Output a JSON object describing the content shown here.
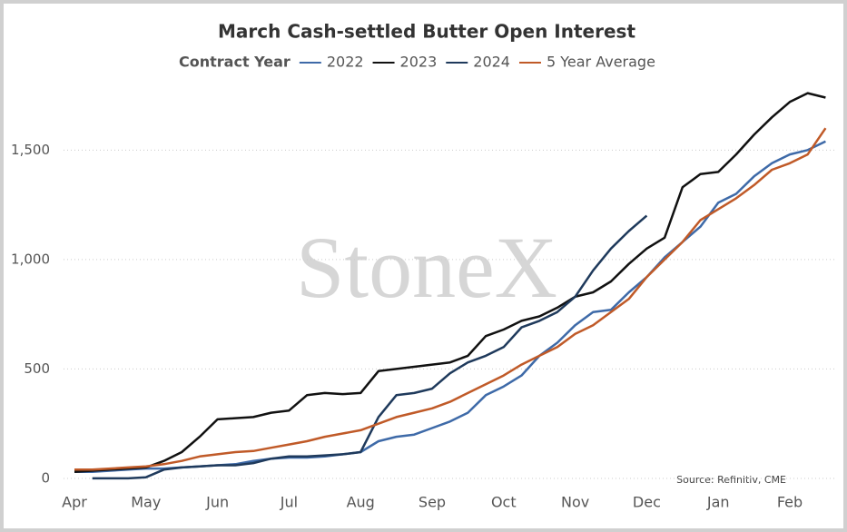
{
  "chart_data": {
    "type": "line",
    "title": "March Cash-settled Butter Open Interest",
    "legend_title": "Contract Year",
    "source": "Source: Refinitiv, CME",
    "watermark": "StoneX",
    "categories": [
      "Apr",
      null,
      null,
      null,
      "May",
      null,
      null,
      null,
      "Jun",
      null,
      null,
      null,
      "Jul",
      null,
      null,
      null,
      "Aug",
      null,
      null,
      null,
      "Sep",
      null,
      null,
      null,
      "Oct",
      null,
      null,
      null,
      "Nov",
      null,
      null,
      null,
      "Dec",
      null,
      null,
      null,
      "Jan",
      null,
      null,
      null,
      "Feb",
      null,
      null
    ],
    "series": [
      {
        "name": "2022",
        "color": "#3e6aa8",
        "values": [
          30,
          30,
          35,
          40,
          45,
          45,
          50,
          55,
          60,
          65,
          80,
          90,
          95,
          95,
          100,
          110,
          120,
          170,
          190,
          200,
          230,
          260,
          300,
          380,
          420,
          470,
          560,
          620,
          700,
          760,
          770,
          850,
          920,
          1010,
          1080,
          1150,
          1260,
          1300,
          1380,
          1440,
          1480,
          1500,
          1540
        ]
      },
      {
        "name": "2023",
        "color": "#111111",
        "values": [
          30,
          35,
          40,
          45,
          50,
          80,
          120,
          190,
          270,
          275,
          280,
          300,
          310,
          380,
          390,
          385,
          390,
          490,
          500,
          510,
          520,
          530,
          560,
          650,
          680,
          720,
          740,
          780,
          830,
          850,
          900,
          980,
          1050,
          1100,
          1330,
          1390,
          1400,
          1480,
          1570,
          1650,
          1720,
          1760,
          1740
        ]
      },
      {
        "name": "2024",
        "color": "#1f3a5c",
        "values": [
          null,
          0,
          0,
          0,
          5,
          40,
          50,
          55,
          60,
          60,
          70,
          90,
          100,
          100,
          105,
          110,
          120,
          280,
          380,
          390,
          410,
          480,
          530,
          560,
          600,
          690,
          720,
          760,
          830,
          950,
          1050,
          1130,
          1200,
          null,
          null,
          null,
          null,
          null,
          null,
          null,
          null,
          null,
          null
        ]
      },
      {
        "name": "5 Year Average",
        "color": "#c05a28",
        "values": [
          40,
          40,
          45,
          50,
          55,
          65,
          80,
          100,
          110,
          120,
          125,
          140,
          155,
          170,
          190,
          205,
          220,
          250,
          280,
          300,
          320,
          350,
          390,
          430,
          470,
          520,
          560,
          600,
          660,
          700,
          760,
          820,
          920,
          1000,
          1080,
          1180,
          1230,
          1280,
          1340,
          1410,
          1440,
          1480,
          1600
        ]
      }
    ],
    "ylim": [
      -50,
      1800
    ],
    "yticks": [
      0,
      500,
      {
        "value": 1000,
        "label": "1,000"
      },
      {
        "value": 1500,
        "label": "1,500"
      }
    ],
    "grid": true
  }
}
